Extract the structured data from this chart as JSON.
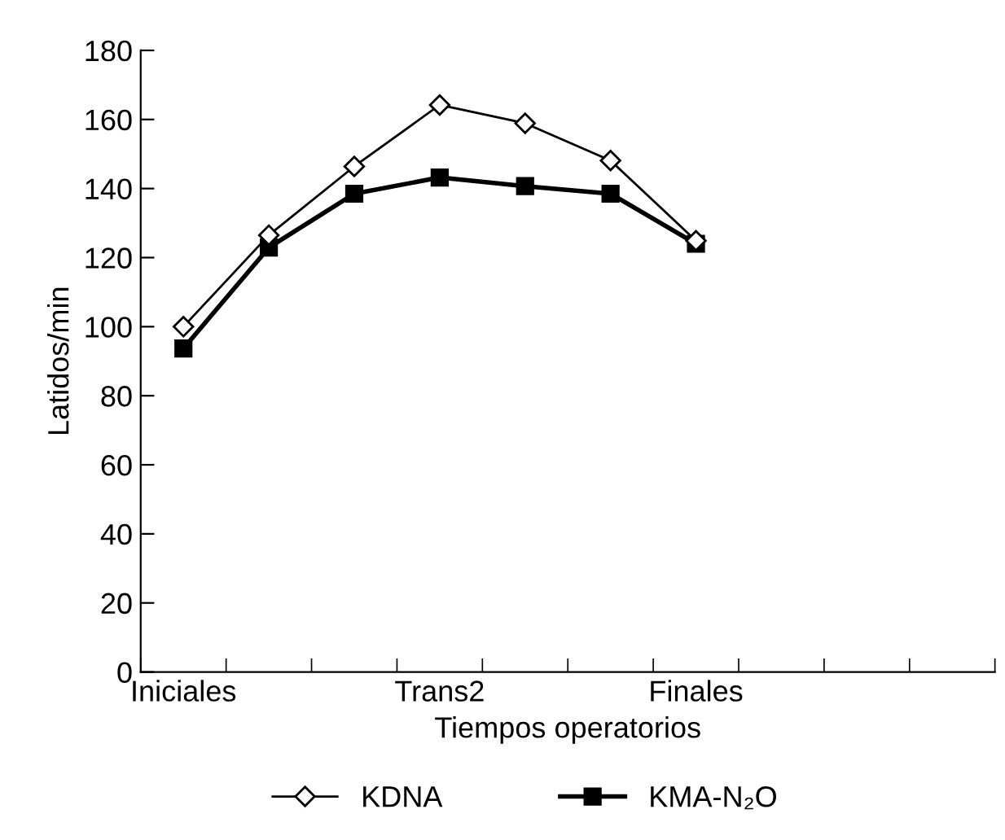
{
  "chart_data": {
    "type": "line",
    "xlabel": "Tiempos operatorios",
    "ylabel": "Latidos/min",
    "categories": [
      "Iniciales",
      null,
      null,
      "Trans2",
      null,
      null,
      "Finales",
      null,
      null,
      null
    ],
    "series": [
      {
        "name": "KDNA",
        "color": "#000000",
        "marker": "diamond",
        "values": [
          100,
          126.5,
          146.4,
          164.2,
          158.9,
          148.1,
          124.9,
          null,
          null,
          null
        ]
      },
      {
        "name": "KMA-N₂O",
        "color": "#000000",
        "marker": "square",
        "values": [
          93.7,
          122.9,
          138.5,
          143.2,
          140.7,
          138.5,
          124,
          null,
          null,
          null
        ]
      }
    ],
    "ylim": [
      0,
      180
    ],
    "yticks": [
      0,
      20,
      40,
      60,
      80,
      100,
      120,
      140,
      160,
      180
    ],
    "grid": false,
    "legend": "bottom"
  }
}
